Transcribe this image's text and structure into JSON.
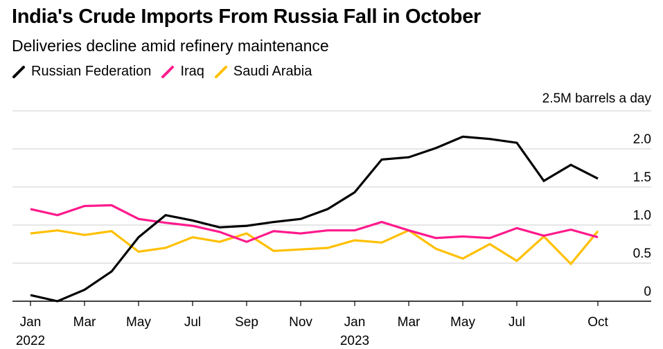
{
  "title": "India's Crude Imports From Russia Fall in October",
  "subtitle": "Deliveries decline amid refinery maintenance",
  "colors": {
    "russia": "#000000",
    "iraq": "#ff1a8c",
    "saudi": "#ffc000",
    "grid": "#cccccc",
    "axis": "#000000"
  },
  "legend": [
    {
      "name": "Russian Federation",
      "color": "#000000"
    },
    {
      "name": "Iraq",
      "color": "#ff1a8c"
    },
    {
      "name": "Saudi Arabia",
      "color": "#ffc000"
    }
  ],
  "chart_data": {
    "type": "line",
    "unit_label": "2.5M barrels a day",
    "y_ticks": [
      {
        "value": 0,
        "label": "0"
      },
      {
        "value": 0.5,
        "label": "0.5"
      },
      {
        "value": 1.0,
        "label": "1.0"
      },
      {
        "value": 1.5,
        "label": "1.5"
      },
      {
        "value": 2.0,
        "label": "2.0"
      }
    ],
    "ylim": [
      0,
      2.5
    ],
    "x": [
      "2022-01",
      "2022-02",
      "2022-03",
      "2022-04",
      "2022-05",
      "2022-06",
      "2022-07",
      "2022-08",
      "2022-09",
      "2022-10",
      "2022-11",
      "2022-12",
      "2023-01",
      "2023-02",
      "2023-03",
      "2023-04",
      "2023-05",
      "2023-06",
      "2023-07",
      "2023-08",
      "2023-09",
      "2023-10"
    ],
    "x_ticks": [
      {
        "index": 0,
        "label": "Jan",
        "year": "2022"
      },
      {
        "index": 2,
        "label": "Mar"
      },
      {
        "index": 4,
        "label": "May"
      },
      {
        "index": 6,
        "label": "Jul"
      },
      {
        "index": 8,
        "label": "Sep"
      },
      {
        "index": 10,
        "label": "Nov"
      },
      {
        "index": 12,
        "label": "Jan",
        "year": "2023"
      },
      {
        "index": 14,
        "label": "Mar"
      },
      {
        "index": 16,
        "label": "May"
      },
      {
        "index": 18,
        "label": "Jul"
      },
      {
        "index": 21,
        "label": "Oct"
      }
    ],
    "grid": true,
    "legend_position": "top-left",
    "series": [
      {
        "name": "Russian Federation",
        "color": "#000000",
        "values": [
          0.08,
          0.0,
          0.15,
          0.39,
          0.84,
          1.13,
          1.06,
          0.97,
          0.99,
          1.04,
          1.08,
          1.21,
          1.43,
          1.86,
          1.89,
          2.01,
          2.16,
          2.13,
          2.08,
          1.58,
          1.79,
          1.61
        ]
      },
      {
        "name": "Iraq",
        "color": "#ff1a8c",
        "values": [
          1.21,
          1.13,
          1.25,
          1.26,
          1.08,
          1.03,
          0.99,
          0.91,
          0.78,
          0.92,
          0.89,
          0.93,
          0.93,
          1.04,
          0.93,
          0.83,
          0.85,
          0.83,
          0.96,
          0.86,
          0.94,
          0.84
        ]
      },
      {
        "name": "Saudi Arabia",
        "color": "#ffc000",
        "values": [
          0.89,
          0.93,
          0.87,
          0.92,
          0.65,
          0.7,
          0.84,
          0.78,
          0.89,
          0.66,
          0.68,
          0.7,
          0.8,
          0.77,
          0.93,
          0.69,
          0.56,
          0.75,
          0.53,
          0.85,
          0.49,
          0.92
        ]
      }
    ]
  }
}
